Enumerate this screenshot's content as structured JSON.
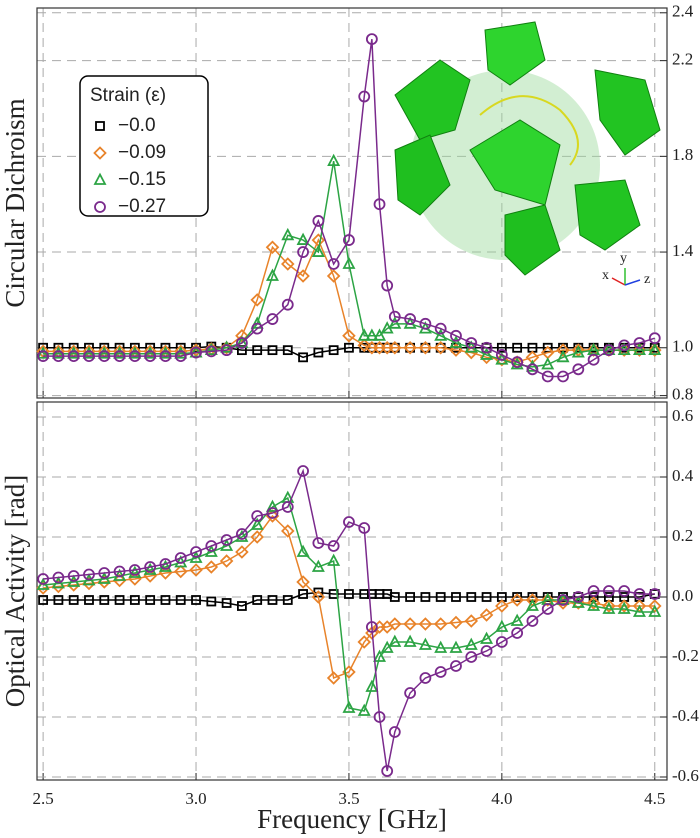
{
  "chart_data": [
    {
      "type": "line",
      "y_label": "Circular Dichroism",
      "legend_title": "Strain (ε)",
      "legend": "upper left",
      "grid": true,
      "annotations": [
        "x",
        "y",
        "z"
      ],
      "x": [
        2.5,
        2.55,
        2.6,
        2.65,
        2.7,
        2.75,
        2.8,
        2.85,
        2.9,
        2.95,
        3.0,
        3.05,
        3.1,
        3.15,
        3.2,
        3.25,
        3.3,
        3.35,
        3.4,
        3.45,
        3.5,
        3.55,
        3.575,
        3.6,
        3.625,
        3.65,
        3.7,
        3.75,
        3.8,
        3.85,
        3.9,
        3.95,
        4.0,
        4.05,
        4.1,
        4.15,
        4.2,
        4.25,
        4.3,
        4.35,
        4.4,
        4.45,
        4.5
      ],
      "xlim": [
        2.48,
        4.54
      ],
      "ylim": [
        0.79,
        2.42
      ],
      "yticks": [
        0.8,
        {
          "value": 1,
          "label": "1.0"
        },
        1.4,
        1.8,
        2.2,
        2.4
      ],
      "series": [
        {
          "name": "−0.0",
          "color": "#000000",
          "marker": "square",
          "values": [
            1,
            1,
            1,
            1,
            1,
            1,
            1,
            1,
            1,
            1,
            1,
            1.005,
            1,
            0.99,
            0.99,
            0.99,
            0.99,
            0.96,
            0.98,
            0.99,
            1,
            1,
            1,
            1,
            1,
            1,
            1,
            1,
            1,
            1,
            1,
            1,
            1,
            1,
            1,
            1,
            1,
            1,
            1,
            1,
            1,
            1,
            1
          ]
        },
        {
          "name": "−0.09",
          "color": "#e8832a",
          "marker": "diamond",
          "values": [
            0.985,
            0.985,
            0.985,
            0.985,
            0.985,
            0.985,
            0.985,
            0.985,
            0.985,
            0.985,
            0.99,
            0.995,
            1,
            1.05,
            1.2,
            1.42,
            1.35,
            1.3,
            1.45,
            1.3,
            1.05,
            1.01,
            1,
            1,
            1,
            1,
            1,
            1,
            1,
            0.99,
            0.98,
            0.96,
            0.95,
            0.94,
            0.96,
            0.98,
            0.99,
            0.99,
            0.99,
            0.99,
            0.99,
            0.99,
            0.99
          ]
        },
        {
          "name": "−0.15",
          "color": "#2ca444",
          "marker": "triangle",
          "values": [
            0.975,
            0.975,
            0.975,
            0.975,
            0.975,
            0.975,
            0.975,
            0.975,
            0.975,
            0.975,
            0.98,
            0.99,
            1,
            1.02,
            1.1,
            1.3,
            1.47,
            1.45,
            1.4,
            1.78,
            1.35,
            1.05,
            1.05,
            1.05,
            1.08,
            1.1,
            1.1,
            1.08,
            1.05,
            1.02,
            1,
            0.97,
            0.95,
            0.93,
            0.92,
            0.93,
            0.96,
            0.98,
            0.99,
            0.99,
            0.99,
            0.99,
            0.99
          ]
        },
        {
          "name": "−0.27",
          "color": "#7a2a8c",
          "marker": "circle",
          "values": [
            0.965,
            0.965,
            0.965,
            0.965,
            0.965,
            0.965,
            0.965,
            0.965,
            0.965,
            0.965,
            0.98,
            0.985,
            0.99,
            1.02,
            1.08,
            1.12,
            1.18,
            1.4,
            1.53,
            1.35,
            1.45,
            2.05,
            2.29,
            1.6,
            1.26,
            1.13,
            1.12,
            1.1,
            1.08,
            1.05,
            1.02,
            1,
            0.97,
            0.94,
            0.91,
            0.88,
            0.88,
            0.91,
            0.95,
            0.99,
            1.01,
            1.02,
            1.04
          ]
        }
      ]
    },
    {
      "type": "line",
      "x_label": "Frequency [GHz]",
      "y_label": "Optical Activity [rad]",
      "grid": true,
      "x": [
        2.5,
        2.55,
        2.6,
        2.65,
        2.7,
        2.75,
        2.8,
        2.85,
        2.9,
        2.95,
        3.0,
        3.05,
        3.1,
        3.15,
        3.2,
        3.25,
        3.3,
        3.35,
        3.4,
        3.45,
        3.5,
        3.55,
        3.575,
        3.6,
        3.625,
        3.65,
        3.7,
        3.75,
        3.8,
        3.85,
        3.9,
        3.95,
        4.0,
        4.05,
        4.1,
        4.15,
        4.2,
        4.25,
        4.3,
        4.35,
        4.4,
        4.45,
        4.5
      ],
      "xlim": [
        2.48,
        4.54
      ],
      "ylim": [
        -0.61,
        0.65
      ],
      "xticks": [
        2.5,
        {
          "value": 3,
          "label": "3.0"
        },
        3.5,
        {
          "value": 4,
          "label": "4.0"
        },
        4.5
      ],
      "yticks": [
        0.6,
        0.4,
        0.2,
        {
          "value": 0,
          "label": "0.0"
        },
        -0.2,
        -0.4,
        -0.6
      ],
      "series": [
        {
          "color": "#000000",
          "marker": "square",
          "values": [
            -0.01,
            -0.01,
            -0.01,
            -0.01,
            -0.01,
            -0.01,
            -0.01,
            -0.01,
            -0.01,
            -0.01,
            -0.01,
            -0.015,
            -0.02,
            -0.03,
            -0.01,
            -0.01,
            -0.01,
            0.01,
            0.015,
            0.01,
            0.01,
            0.01,
            0.01,
            0.01,
            0.01,
            0,
            0,
            0,
            0,
            0,
            0,
            0,
            0,
            0,
            0,
            0,
            0,
            0,
            0,
            0,
            0,
            0,
            0.01
          ]
        },
        {
          "color": "#e8832a",
          "marker": "diamond",
          "values": [
            0.03,
            0.035,
            0.04,
            0.045,
            0.05,
            0.055,
            0.06,
            0.07,
            0.08,
            0.085,
            0.09,
            0.1,
            0.12,
            0.15,
            0.2,
            0.27,
            0.22,
            0.05,
            0,
            -0.27,
            -0.25,
            -0.15,
            -0.12,
            -0.1,
            -0.1,
            -0.09,
            -0.09,
            -0.09,
            -0.09,
            -0.085,
            -0.08,
            -0.06,
            -0.03,
            -0.01,
            -0.01,
            -0.01,
            -0.02,
            -0.02,
            -0.02,
            -0.03,
            -0.03,
            -0.03,
            -0.03
          ]
        },
        {
          "color": "#2ca444",
          "marker": "triangle",
          "values": [
            0.04,
            0.045,
            0.05,
            0.055,
            0.06,
            0.07,
            0.08,
            0.09,
            0.1,
            0.115,
            0.13,
            0.15,
            0.17,
            0.2,
            0.24,
            0.3,
            0.33,
            0.15,
            0.1,
            0.12,
            -0.37,
            -0.38,
            -0.3,
            -0.2,
            -0.17,
            -0.15,
            -0.15,
            -0.16,
            -0.17,
            -0.17,
            -0.16,
            -0.14,
            -0.1,
            -0.08,
            -0.03,
            -0.01,
            -0.01,
            -0.02,
            -0.03,
            -0.04,
            -0.04,
            -0.05,
            -0.05
          ]
        },
        {
          "color": "#7a2a8c",
          "marker": "circle",
          "values": [
            0.06,
            0.065,
            0.07,
            0.075,
            0.08,
            0.085,
            0.09,
            0.1,
            0.11,
            0.13,
            0.15,
            0.17,
            0.19,
            0.21,
            0.27,
            0.28,
            0.3,
            0.42,
            0.18,
            0.17,
            0.25,
            0.23,
            -0.1,
            -0.4,
            -0.58,
            -0.45,
            -0.32,
            -0.27,
            -0.25,
            -0.23,
            -0.2,
            -0.18,
            -0.15,
            -0.12,
            -0.08,
            -0.04,
            -0.01,
            0,
            0.02,
            0.02,
            0.02,
            0.01,
            0.01
          ]
        }
      ]
    }
  ]
}
